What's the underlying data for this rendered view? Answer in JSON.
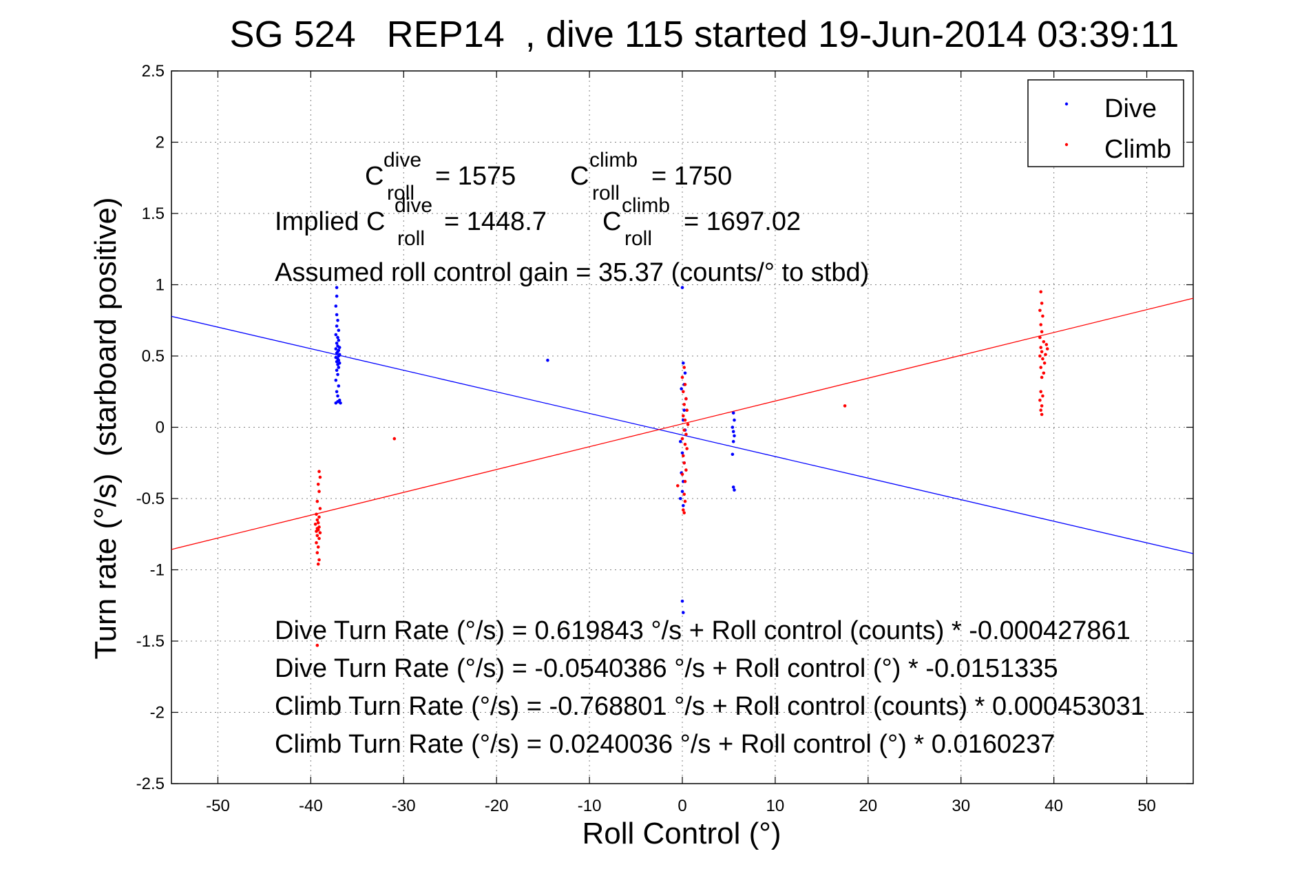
{
  "chart_data": {
    "type": "scatter",
    "title": "SG 524   REP14  , dive 115 started 19-Jun-2014 03:39:11",
    "xlabel": "Roll Control (°)",
    "ylabel": "Turn rate (°/s)  (starboard positive)",
    "xlim": [
      -55,
      55
    ],
    "ylim": [
      -2.5,
      2.5
    ],
    "xticks": [
      "-50",
      "-40",
      "-30",
      "-20",
      "-10",
      "0",
      "10",
      "20",
      "30",
      "40",
      "50"
    ],
    "yticks": [
      "2.5",
      "2",
      "1.5",
      "1",
      "0.5",
      "0",
      "-0.5",
      "-1",
      "-1.5",
      "-2",
      "-2.5"
    ],
    "grid": true,
    "legend_placement": "top-right",
    "legend": [
      {
        "label": "Dive",
        "color": "#0000ff"
      },
      {
        "label": "Climb",
        "color": "#ff0000"
      }
    ],
    "series": [
      {
        "name": "Dive",
        "color": "#0000ff",
        "points": [
          [
            -37.2,
            0.98
          ],
          [
            -37.2,
            0.92
          ],
          [
            -37.3,
            0.85
          ],
          [
            -37.2,
            0.79
          ],
          [
            -37.1,
            0.75
          ],
          [
            -37.2,
            0.71
          ],
          [
            -37.0,
            0.68
          ],
          [
            -37.3,
            0.65
          ],
          [
            -37.1,
            0.63
          ],
          [
            -37.0,
            0.61
          ],
          [
            -37.2,
            0.59
          ],
          [
            -37.1,
            0.57
          ],
          [
            -36.9,
            0.56
          ],
          [
            -37.3,
            0.55
          ],
          [
            -37.0,
            0.54
          ],
          [
            -37.1,
            0.53
          ],
          [
            -37.2,
            0.52
          ],
          [
            -36.9,
            0.51
          ],
          [
            -37.0,
            0.5
          ],
          [
            -37.3,
            0.49
          ],
          [
            -37.1,
            0.48
          ],
          [
            -37.0,
            0.47
          ],
          [
            -37.2,
            0.46
          ],
          [
            -36.9,
            0.45
          ],
          [
            -37.1,
            0.44
          ],
          [
            -37.0,
            0.42
          ],
          [
            -37.2,
            0.4
          ],
          [
            -37.1,
            0.37
          ],
          [
            -37.3,
            0.33
          ],
          [
            -37.0,
            0.29
          ],
          [
            -37.2,
            0.25
          ],
          [
            -37.1,
            0.22
          ],
          [
            -36.9,
            0.19
          ],
          [
            -37.0,
            0.18
          ],
          [
            -37.3,
            0.17
          ],
          [
            -36.8,
            0.17
          ],
          [
            -37.1,
            0.18
          ],
          [
            -14.5,
            0.47
          ],
          [
            0.0,
            0.98
          ],
          [
            0.1,
            0.45
          ],
          [
            0.3,
            0.38
          ],
          [
            0.2,
            0.3
          ],
          [
            -0.1,
            0.27
          ],
          [
            0.4,
            0.2
          ],
          [
            0.2,
            0.12
          ],
          [
            0.1,
            0.05
          ],
          [
            0.3,
            -0.02
          ],
          [
            -0.2,
            -0.1
          ],
          [
            0.0,
            -0.18
          ],
          [
            0.2,
            -0.25
          ],
          [
            -0.1,
            -0.32
          ],
          [
            0.1,
            -0.38
          ],
          [
            0.0,
            -0.45
          ],
          [
            -0.2,
            -0.5
          ],
          [
            0.1,
            -0.55
          ],
          [
            0.0,
            -1.22
          ],
          [
            0.1,
            -1.3
          ],
          [
            5.5,
            0.1
          ],
          [
            5.6,
            0.05
          ],
          [
            5.4,
            0.0
          ],
          [
            5.5,
            -0.03
          ],
          [
            5.6,
            -0.06
          ],
          [
            5.5,
            -0.1
          ],
          [
            5.4,
            -0.19
          ],
          [
            5.5,
            -0.42
          ],
          [
            5.6,
            -0.44
          ]
        ]
      },
      {
        "name": "Climb",
        "color": "#ff0000",
        "points": [
          [
            -39.1,
            -0.31
          ],
          [
            -39.0,
            -0.35
          ],
          [
            -39.2,
            -0.4
          ],
          [
            -39.1,
            -0.45
          ],
          [
            -39.3,
            -0.52
          ],
          [
            -39.0,
            -0.57
          ],
          [
            -39.4,
            -0.61
          ],
          [
            -39.1,
            -0.63
          ],
          [
            -39.3,
            -0.65
          ],
          [
            -39.2,
            -0.67
          ],
          [
            -39.5,
            -0.68
          ],
          [
            -39.1,
            -0.7
          ],
          [
            -39.3,
            -0.71
          ],
          [
            -39.2,
            -0.72
          ],
          [
            -39.4,
            -0.73
          ],
          [
            -39.0,
            -0.74
          ],
          [
            -39.3,
            -0.76
          ],
          [
            -39.1,
            -0.78
          ],
          [
            -39.4,
            -0.81
          ],
          [
            -39.2,
            -0.84
          ],
          [
            -39.3,
            -0.88
          ],
          [
            -39.1,
            -0.93
          ],
          [
            -39.2,
            -0.96
          ],
          [
            -39.3,
            -1.53
          ],
          [
            -31.0,
            -0.08
          ],
          [
            0.2,
            0.42
          ],
          [
            0.0,
            0.35
          ],
          [
            0.3,
            0.3
          ],
          [
            0.1,
            0.25
          ],
          [
            0.4,
            0.2
          ],
          [
            0.2,
            0.16
          ],
          [
            0.5,
            0.12
          ],
          [
            0.1,
            0.08
          ],
          [
            0.3,
            0.05
          ],
          [
            0.6,
            0.02
          ],
          [
            0.2,
            -0.02
          ],
          [
            0.4,
            -0.05
          ],
          [
            0.0,
            -0.08
          ],
          [
            0.3,
            -0.12
          ],
          [
            0.5,
            -0.15
          ],
          [
            0.1,
            -0.2
          ],
          [
            0.2,
            -0.25
          ],
          [
            0.4,
            -0.3
          ],
          [
            0.0,
            -0.33
          ],
          [
            0.3,
            -0.38
          ],
          [
            -0.5,
            -0.41
          ],
          [
            0.2,
            -0.47
          ],
          [
            0.3,
            -0.52
          ],
          [
            0.1,
            -0.58
          ],
          [
            0.2,
            -0.6
          ],
          [
            17.5,
            0.15
          ],
          [
            38.6,
            0.95
          ],
          [
            38.7,
            0.87
          ],
          [
            38.5,
            0.82
          ],
          [
            38.8,
            0.78
          ],
          [
            38.6,
            0.72
          ],
          [
            38.7,
            0.67
          ],
          [
            38.5,
            0.63
          ],
          [
            38.9,
            0.6
          ],
          [
            39.2,
            0.58
          ],
          [
            38.6,
            0.56
          ],
          [
            39.3,
            0.55
          ],
          [
            38.7,
            0.53
          ],
          [
            39.1,
            0.51
          ],
          [
            38.5,
            0.5
          ],
          [
            38.8,
            0.48
          ],
          [
            39.0,
            0.45
          ],
          [
            38.6,
            0.42
          ],
          [
            38.9,
            0.38
          ],
          [
            38.7,
            0.35
          ],
          [
            38.6,
            0.25
          ],
          [
            38.8,
            0.22
          ],
          [
            38.5,
            0.19
          ],
          [
            38.7,
            0.15
          ],
          [
            38.6,
            0.12
          ],
          [
            38.7,
            0.09
          ]
        ]
      }
    ],
    "fit_lines": [
      {
        "color": "#0000ff",
        "intercept": -0.0540386,
        "slope": -0.0151335
      },
      {
        "color": "#ff0000",
        "intercept": 0.0240036,
        "slope": 0.0160237
      }
    ],
    "annotations": {
      "c_roll_dive": {
        "base": "C",
        "sup": "dive",
        "sub": "roll",
        "value": "= 1575"
      },
      "c_roll_climb": {
        "base": "C",
        "sup": "climb",
        "sub": "roll",
        "value": "= 1750"
      },
      "implied_prefix": "Implied C",
      "implied_dive": {
        "sup": "dive",
        "sub": "roll",
        "value": "= 1448.7"
      },
      "implied_climb": {
        "base": "C",
        "sup": "climb",
        "sub": "roll",
        "value": "= 1697.02"
      },
      "gain": "Assumed roll control gain = 35.37 (counts/° to stbd)",
      "equations": [
        "Dive Turn Rate (°/s) = 0.619843 °/s + Roll control (counts) * -0.000427861",
        "Dive Turn Rate (°/s) = -0.0540386 °/s + Roll control (°) * -0.0151335",
        "Climb Turn Rate (°/s) = -0.768801 °/s + Roll control (counts) * 0.000453031",
        "Climb Turn Rate (°/s) = 0.0240036 °/s + Roll control (°) * 0.0160237"
      ]
    }
  }
}
